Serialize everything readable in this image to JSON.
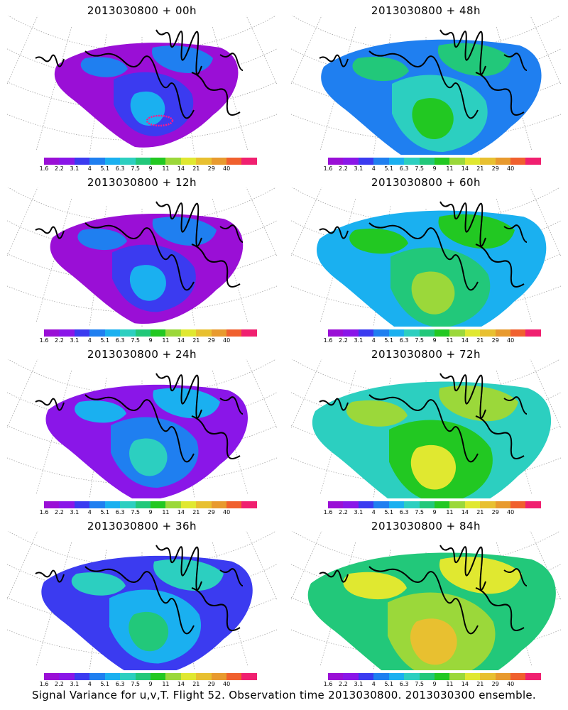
{
  "caption": "Signal Variance for u,v,T. Flight 52. Observation time 2013030800. 2013030300 ensemble.",
  "colorbar": {
    "labels": [
      "1.6",
      "2.2",
      "3.1",
      "4",
      "5.1",
      "6.3",
      "7.5",
      "9",
      "11",
      "14",
      "21",
      "29",
      "40"
    ],
    "colors": [
      "#9a0fd6",
      "#8a16e8",
      "#3b3bf0",
      "#1f7ff0",
      "#1ab0f0",
      "#2ccfc0",
      "#22c87a",
      "#22c822",
      "#9bd83a",
      "#e0e830",
      "#e8c030",
      "#e89a2e",
      "#f0602e",
      "#f02070"
    ]
  },
  "panels": [
    {
      "title": "2013030800 + 00h",
      "level": 0
    },
    {
      "title": "2013030800 + 48h",
      "level": 4
    },
    {
      "title": "2013030800 + 12h",
      "level": 1
    },
    {
      "title": "2013030800 + 60h",
      "level": 5
    },
    {
      "title": "2013030800 + 24h",
      "level": 2
    },
    {
      "title": "2013030800 + 72h",
      "level": 6
    },
    {
      "title": "2013030800 + 36h",
      "level": 3
    },
    {
      "title": "2013030800 + 84h",
      "level": 7
    }
  ]
}
